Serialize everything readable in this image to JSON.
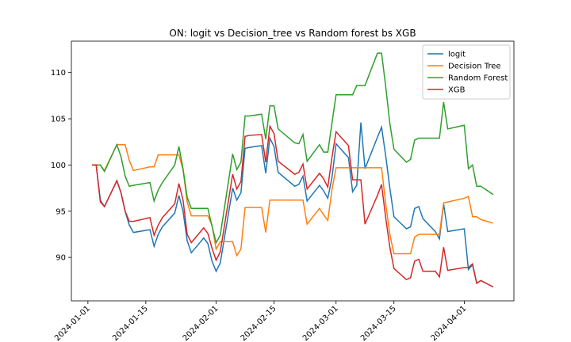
{
  "chart_data": {
    "type": "line",
    "title": "ON: logit vs Decision_tree vs Random forest bs XGB",
    "x": [
      "2024-01-02",
      "2024-01-03",
      "2024-01-04",
      "2024-01-05",
      "2024-01-08",
      "2024-01-09",
      "2024-01-10",
      "2024-01-11",
      "2024-01-12",
      "2024-01-16",
      "2024-01-17",
      "2024-01-18",
      "2024-01-19",
      "2024-01-22",
      "2024-01-23",
      "2024-01-24",
      "2024-01-25",
      "2024-01-26",
      "2024-01-29",
      "2024-01-30",
      "2024-01-31",
      "2024-02-01",
      "2024-02-02",
      "2024-02-05",
      "2024-02-06",
      "2024-02-07",
      "2024-02-08",
      "2024-02-09",
      "2024-02-12",
      "2024-02-13",
      "2024-02-14",
      "2024-02-15",
      "2024-02-16",
      "2024-02-20",
      "2024-02-21",
      "2024-02-22",
      "2024-02-23",
      "2024-02-26",
      "2024-02-27",
      "2024-02-28",
      "2024-02-29",
      "2024-03-01",
      "2024-03-04",
      "2024-03-05",
      "2024-03-06",
      "2024-03-07",
      "2024-03-08",
      "2024-03-11",
      "2024-03-12",
      "2024-03-13",
      "2024-03-14",
      "2024-03-15",
      "2024-03-18",
      "2024-03-19",
      "2024-03-20",
      "2024-03-21",
      "2024-03-22",
      "2024-03-25",
      "2024-03-26",
      "2024-03-27",
      "2024-03-28",
      "2024-04-01",
      "2024-04-02",
      "2024-04-03",
      "2024-04-04",
      "2024-04-05",
      "2024-04-08"
    ],
    "series": [
      {
        "name": "logit",
        "color": "#1f77b4",
        "values": [
          100,
          100,
          96.2,
          95.5,
          98.3,
          97,
          95,
          93.5,
          92.7,
          93,
          91.2,
          92.5,
          93.3,
          94.8,
          96.7,
          95,
          91.8,
          90.5,
          92.1,
          91.5,
          89.6,
          88.5,
          89.4,
          97.5,
          96.2,
          97,
          101.8,
          101.9,
          102.1,
          99.1,
          102.9,
          102,
          99.2,
          97.7,
          97.9,
          98.8,
          96.1,
          97.8,
          97.2,
          96.4,
          98.6,
          102.3,
          100.8,
          97.1,
          97.8,
          104.6,
          99.6,
          103,
          104.1,
          101,
          97.5,
          94.4,
          93.1,
          93.3,
          95.3,
          95.5,
          94.2,
          92.8,
          92,
          95.8,
          92.8,
          93.1,
          88.7,
          89.2,
          87.2,
          87.5,
          86.8
        ]
      },
      {
        "name": "Decision Tree",
        "color": "#ff7f0e",
        "values": [
          100,
          100,
          100,
          99.4,
          102.2,
          102.2,
          102.2,
          100.5,
          99.4,
          99.8,
          99.8,
          101.1,
          101.1,
          101.1,
          101.1,
          99.5,
          96,
          94.5,
          94.5,
          94.5,
          93.5,
          90.9,
          91.7,
          91.7,
          90.2,
          90.9,
          95.4,
          95.4,
          95.4,
          92.7,
          96.2,
          96.2,
          96.2,
          96.2,
          96.2,
          96.2,
          93.6,
          95.3,
          94.6,
          94,
          97.3,
          99.7,
          99.7,
          99.7,
          99.7,
          99.7,
          99.7,
          99.7,
          99.7,
          95.8,
          92.5,
          90.4,
          90.4,
          90.4,
          92.2,
          92.5,
          92.5,
          92.5,
          92.5,
          95.9,
          96,
          96.4,
          96.6,
          94.4,
          94.4,
          94.1,
          93.7
        ]
      },
      {
        "name": "Random Forest",
        "color": "#2ca02c",
        "values": [
          100,
          100,
          100,
          99.3,
          102.2,
          100.9,
          98.8,
          97.7,
          97.8,
          98.1,
          96.1,
          97.3,
          98.1,
          100,
          102,
          99.6,
          96.5,
          95.3,
          95.3,
          95.3,
          93.4,
          91.6,
          92.4,
          101.2,
          99.5,
          100.3,
          105.3,
          105.3,
          105.5,
          102.8,
          106.4,
          106.4,
          103.9,
          102.4,
          102.3,
          103.3,
          100.4,
          102.2,
          101.4,
          101.4,
          104.5,
          107.6,
          107.6,
          107.6,
          108.6,
          108.6,
          108.6,
          112.1,
          112.1,
          108.5,
          104.5,
          101.7,
          100.3,
          100.6,
          102.7,
          102.9,
          102.9,
          102.9,
          102.9,
          106.8,
          103.9,
          104.3,
          99.6,
          100,
          97.7,
          97.7,
          96.8
        ]
      },
      {
        "name": "XGB",
        "color": "#d62728",
        "values": [
          100,
          100,
          96,
          95.5,
          98.3,
          97,
          95,
          93.9,
          93.9,
          94.3,
          92.4,
          93.5,
          94.3,
          95.8,
          98,
          96.2,
          92.5,
          91.6,
          93.2,
          92.6,
          91,
          89.7,
          90.6,
          99,
          97.4,
          98.2,
          103.1,
          103.2,
          103.3,
          100.3,
          104.2,
          103.4,
          100.4,
          99,
          99.2,
          100.1,
          97.4,
          99.1,
          98.5,
          97.6,
          100.8,
          103.6,
          102.1,
          98.4,
          98.4,
          98.4,
          93.6,
          96.7,
          97.9,
          94.3,
          91.1,
          88.8,
          87.6,
          87.8,
          89.6,
          89.8,
          88.5,
          88.5,
          87.9,
          91.1,
          88.6,
          88.9,
          88.9,
          89.3,
          87.2,
          87.5,
          86.8
        ]
      }
    ],
    "xlim": [
      "2023-12-28",
      "2024-04-13"
    ],
    "xticks": [
      "2024-01-01",
      "2024-01-15",
      "2024-02-01",
      "2024-02-15",
      "2024-03-01",
      "2024-03-15",
      "2024-04-01"
    ],
    "ylim": [
      85.3,
      113.4
    ],
    "yticks": [
      90,
      95,
      100,
      105,
      110
    ],
    "legend": "upper right",
    "grid": false
  }
}
